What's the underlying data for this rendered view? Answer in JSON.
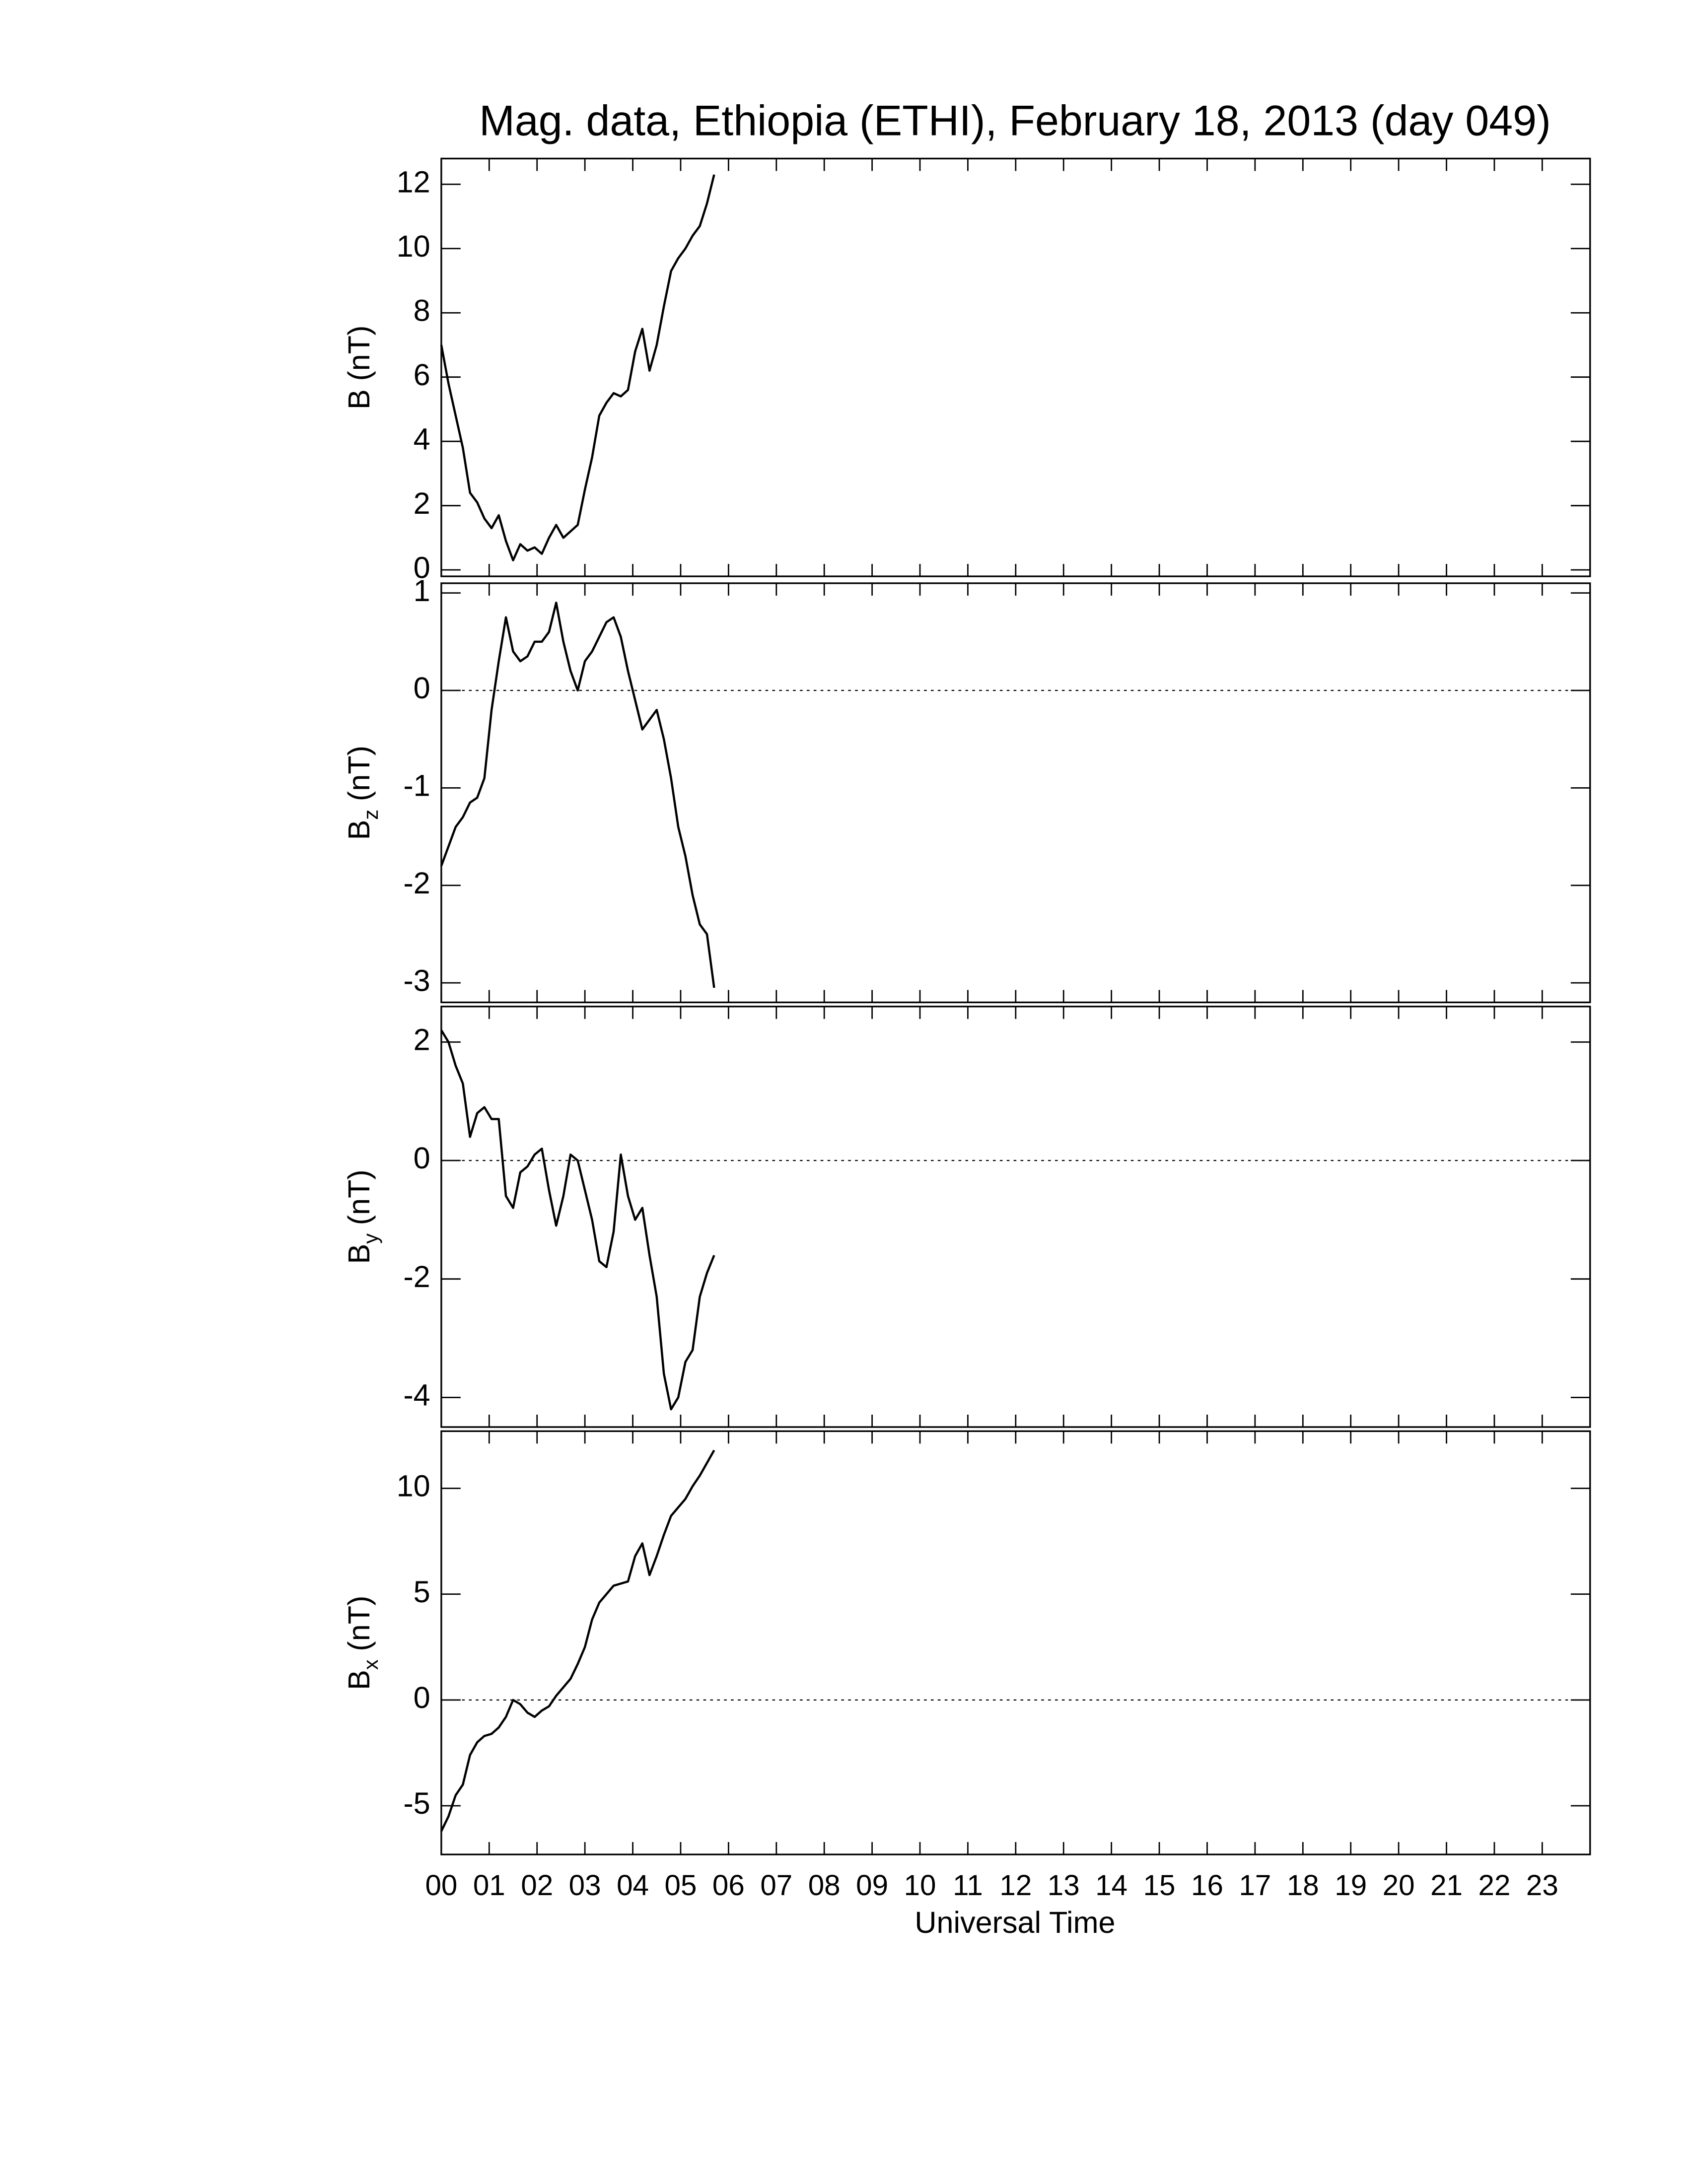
{
  "chart_data": [
    {
      "type": "line",
      "title": "Mag. data, Ethiopia (ETHI), February 18, 2013 (day 049)",
      "ylabel": "B",
      "ylabel_unit": "(nT)",
      "x": [
        0,
        0.15,
        0.3,
        0.45,
        0.6,
        0.75,
        0.9,
        1.05,
        1.2,
        1.35,
        1.5,
        1.65,
        1.8,
        1.95,
        2.1,
        2.25,
        2.4,
        2.55,
        2.7,
        2.85,
        3.0,
        3.15,
        3.3,
        3.45,
        3.6,
        3.75,
        3.9,
        4.05,
        4.2,
        4.35,
        4.5,
        4.65,
        4.8,
        4.95,
        5.1,
        5.25,
        5.4,
        5.55,
        5.7
      ],
      "values": [
        7.0,
        5.8,
        4.8,
        3.8,
        2.4,
        2.1,
        1.6,
        1.3,
        1.7,
        0.9,
        0.3,
        0.8,
        0.6,
        0.7,
        0.5,
        1.0,
        1.4,
        1.0,
        1.2,
        1.4,
        2.5,
        3.5,
        4.8,
        5.2,
        5.5,
        5.4,
        5.6,
        6.8,
        7.5,
        6.2,
        7.0,
        8.2,
        9.3,
        9.7,
        10.0,
        10.4,
        10.7,
        11.4,
        12.3
      ],
      "color": "#000000",
      "xlim": [
        0,
        24
      ],
      "ylim": [
        -0.2,
        12.8
      ],
      "yticks": [
        0,
        2,
        4,
        6,
        8,
        10,
        12
      ]
    },
    {
      "type": "line",
      "ylabel": "B",
      "ylabel_subscript": "z",
      "ylabel_unit": "(nT)",
      "x": [
        0,
        0.15,
        0.3,
        0.45,
        0.6,
        0.75,
        0.9,
        1.05,
        1.2,
        1.35,
        1.5,
        1.65,
        1.8,
        1.95,
        2.1,
        2.25,
        2.4,
        2.55,
        2.7,
        2.85,
        3.0,
        3.15,
        3.3,
        3.45,
        3.6,
        3.75,
        3.9,
        4.05,
        4.2,
        4.35,
        4.5,
        4.65,
        4.8,
        4.95,
        5.1,
        5.25,
        5.4,
        5.55,
        5.7
      ],
      "values": [
        -1.8,
        -1.6,
        -1.4,
        -1.3,
        -1.15,
        -1.1,
        -0.9,
        -0.2,
        0.3,
        0.75,
        0.4,
        0.3,
        0.35,
        0.5,
        0.5,
        0.6,
        0.9,
        0.5,
        0.2,
        0.0,
        0.3,
        0.4,
        0.55,
        0.7,
        0.75,
        0.55,
        0.2,
        -0.1,
        -0.4,
        -0.3,
        -0.2,
        -0.5,
        -0.9,
        -1.4,
        -1.7,
        -2.1,
        -2.4,
        -2.5,
        -3.05
      ],
      "color": "#000000",
      "xlim": [
        0,
        24
      ],
      "ylim": [
        -3.2,
        1.1
      ],
      "yticks": [
        -3,
        -2,
        -1,
        0,
        1
      ],
      "zero_line": true
    },
    {
      "type": "line",
      "ylabel": "B",
      "ylabel_subscript": "y",
      "ylabel_unit": "(nT)",
      "x": [
        0,
        0.15,
        0.3,
        0.45,
        0.6,
        0.75,
        0.9,
        1.05,
        1.2,
        1.35,
        1.5,
        1.65,
        1.8,
        1.95,
        2.1,
        2.25,
        2.4,
        2.55,
        2.7,
        2.85,
        3.0,
        3.15,
        3.3,
        3.45,
        3.6,
        3.75,
        3.9,
        4.05,
        4.2,
        4.35,
        4.5,
        4.65,
        4.8,
        4.95,
        5.1,
        5.25,
        5.4,
        5.55,
        5.7
      ],
      "values": [
        2.2,
        2.0,
        1.6,
        1.3,
        0.4,
        0.8,
        0.9,
        0.7,
        0.7,
        -0.6,
        -0.8,
        -0.2,
        -0.1,
        0.1,
        0.2,
        -0.5,
        -1.1,
        -0.6,
        0.1,
        0.0,
        -0.5,
        -1.0,
        -1.7,
        -1.8,
        -1.2,
        0.1,
        -0.6,
        -1.0,
        -0.8,
        -1.6,
        -2.3,
        -3.6,
        -4.2,
        -4.0,
        -3.4,
        -3.2,
        -2.3,
        -1.9,
        -1.6
      ],
      "color": "#000000",
      "xlim": [
        0,
        24
      ],
      "ylim": [
        -4.5,
        2.6
      ],
      "yticks": [
        -4,
        -2,
        0,
        2
      ],
      "zero_line": true
    },
    {
      "type": "line",
      "ylabel": "B",
      "ylabel_subscript": "x",
      "ylabel_unit": "(nT)",
      "xlabel": "Universal Time",
      "x": [
        0,
        0.15,
        0.3,
        0.45,
        0.6,
        0.75,
        0.9,
        1.05,
        1.2,
        1.35,
        1.5,
        1.65,
        1.8,
        1.95,
        2.1,
        2.25,
        2.4,
        2.55,
        2.7,
        2.85,
        3.0,
        3.15,
        3.3,
        3.45,
        3.6,
        3.75,
        3.9,
        4.05,
        4.2,
        4.35,
        4.5,
        4.65,
        4.8,
        4.95,
        5.1,
        5.25,
        5.4,
        5.55,
        5.7
      ],
      "values": [
        -6.2,
        -5.5,
        -4.5,
        -4.0,
        -2.6,
        -2.0,
        -1.7,
        -1.6,
        -1.3,
        -0.8,
        0.0,
        -0.2,
        -0.6,
        -0.8,
        -0.5,
        -0.3,
        0.2,
        0.6,
        1.0,
        1.7,
        2.5,
        3.8,
        4.6,
        5.0,
        5.4,
        5.5,
        5.6,
        6.8,
        7.4,
        5.9,
        6.8,
        7.8,
        8.7,
        9.1,
        9.5,
        10.1,
        10.6,
        11.2,
        11.8
      ],
      "color": "#000000",
      "xlim": [
        0,
        24
      ],
      "ylim": [
        -7.3,
        12.7
      ],
      "yticks": [
        -5,
        0,
        5,
        10
      ],
      "zero_line": true,
      "xticks": [
        {
          "value": 0,
          "label": "00"
        },
        {
          "value": 1,
          "label": "01"
        },
        {
          "value": 2,
          "label": "02"
        },
        {
          "value": 3,
          "label": "03"
        },
        {
          "value": 4,
          "label": "04"
        },
        {
          "value": 5,
          "label": "05"
        },
        {
          "value": 6,
          "label": "06"
        },
        {
          "value": 7,
          "label": "07"
        },
        {
          "value": 8,
          "label": "08"
        },
        {
          "value": 9,
          "label": "09"
        },
        {
          "value": 10,
          "label": "10"
        },
        {
          "value": 11,
          "label": "11"
        },
        {
          "value": 12,
          "label": "12"
        },
        {
          "value": 13,
          "label": "13"
        },
        {
          "value": 14,
          "label": "14"
        },
        {
          "value": 15,
          "label": "15"
        },
        {
          "value": 16,
          "label": "16"
        },
        {
          "value": 17,
          "label": "17"
        },
        {
          "value": 18,
          "label": "18"
        },
        {
          "value": 19,
          "label": "19"
        },
        {
          "value": 20,
          "label": "20"
        },
        {
          "value": 21,
          "label": "21"
        },
        {
          "value": 22,
          "label": "22"
        },
        {
          "value": 23,
          "label": "23"
        }
      ]
    }
  ]
}
